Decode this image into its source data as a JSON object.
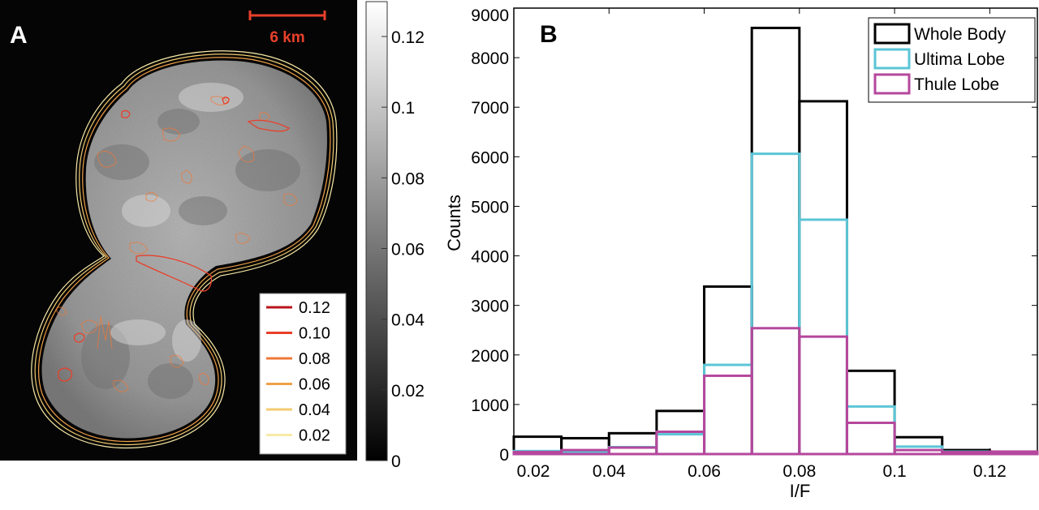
{
  "panel_a": {
    "label": "A",
    "scale_bar_label": "6 km",
    "contour_legend": [
      {
        "value": "0.12",
        "color": "#b8141c"
      },
      {
        "value": "0.10",
        "color": "#e8402a"
      },
      {
        "value": "0.08",
        "color": "#f07838"
      },
      {
        "value": "0.06",
        "color": "#f0a048"
      },
      {
        "value": "0.04",
        "color": "#f2cc70"
      },
      {
        "value": "0.02",
        "color": "#f8eaa8"
      }
    ]
  },
  "colorbar": {
    "ticks": [
      "0.12",
      "0.1",
      "0.08",
      "0.06",
      "0.04",
      "0.02",
      "0"
    ]
  },
  "chart_data": {
    "type": "histogram",
    "panel_label": "B",
    "xlabel": "I/F",
    "ylabel": "Counts",
    "xlim": [
      0.02,
      0.13
    ],
    "ylim": [
      0,
      9000
    ],
    "bin_edges": [
      0.02,
      0.03,
      0.04,
      0.05,
      0.06,
      0.07,
      0.08,
      0.09,
      0.1,
      0.11,
      0.12,
      0.13
    ],
    "x_ticks": [
      "0.02",
      "0.04",
      "0.06",
      "0.08",
      "0.1",
      "0.12"
    ],
    "y_ticks": [
      "0",
      "1000",
      "2000",
      "3000",
      "4000",
      "5000",
      "6000",
      "7000",
      "8000",
      "9000"
    ],
    "legend_position": "top-right",
    "series": [
      {
        "name": "Whole Body",
        "color": "#000000",
        "values": [
          350,
          320,
          420,
          870,
          3380,
          8600,
          7120,
          1680,
          340,
          80,
          40
        ]
      },
      {
        "name": "Ultima Lobe",
        "color": "#5bc5d6",
        "values": [
          60,
          40,
          140,
          400,
          1800,
          6060,
          4730,
          960,
          150,
          50,
          20
        ]
      },
      {
        "name": "Thule Lobe",
        "color": "#b5479c",
        "values": [
          40,
          80,
          130,
          450,
          1580,
          2540,
          2370,
          630,
          80,
          40,
          50
        ]
      }
    ]
  }
}
